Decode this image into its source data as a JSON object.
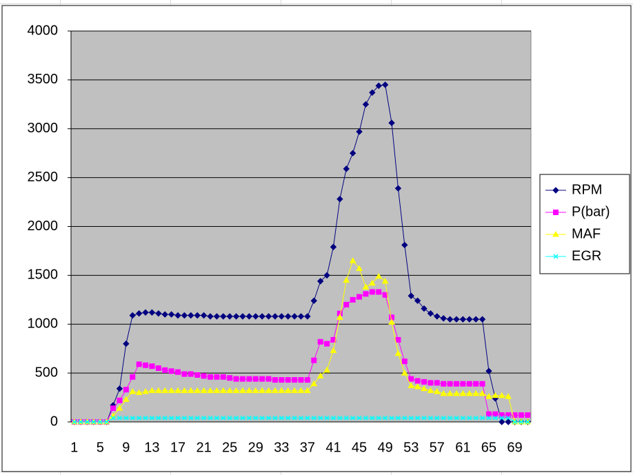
{
  "chart_data": {
    "type": "line",
    "categories": [
      1,
      null,
      null,
      null,
      5,
      null,
      null,
      null,
      9,
      null,
      null,
      null,
      13,
      null,
      null,
      null,
      17,
      null,
      null,
      null,
      21,
      null,
      null,
      null,
      25,
      null,
      null,
      null,
      29,
      null,
      null,
      null,
      33,
      null,
      null,
      null,
      37,
      null,
      null,
      null,
      41,
      null,
      null,
      null,
      45,
      null,
      null,
      null,
      49,
      null,
      null,
      null,
      53,
      null,
      null,
      null,
      57,
      null,
      null,
      null,
      61,
      null,
      null,
      null,
      65,
      null,
      null,
      null,
      69,
      null,
      null
    ],
    "ylim": [
      0,
      4000
    ],
    "yticks": [
      0,
      500,
      1000,
      1500,
      2000,
      2500,
      3000,
      3500,
      4000
    ],
    "grid": true,
    "legend": "right",
    "series": [
      {
        "name": "RPM",
        "color": "#000080",
        "marker": "diamond",
        "values": [
          0,
          0,
          0,
          0,
          0,
          0,
          170,
          340,
          800,
          1090,
          1110,
          1120,
          1120,
          1110,
          1100,
          1100,
          1090,
          1090,
          1090,
          1090,
          1090,
          1080,
          1080,
          1080,
          1080,
          1080,
          1080,
          1080,
          1080,
          1080,
          1080,
          1080,
          1080,
          1080,
          1080,
          1080,
          1080,
          1240,
          1440,
          1500,
          1790,
          2280,
          2590,
          2750,
          2970,
          3250,
          3370,
          3440,
          3450,
          3060,
          2390,
          1810,
          1290,
          1240,
          1160,
          1110,
          1080,
          1060,
          1050,
          1050,
          1050,
          1050,
          1050,
          1050,
          520,
          240,
          0,
          0,
          0,
          0,
          0
        ]
      },
      {
        "name": "P(bar)",
        "color": "#ff00ff",
        "marker": "square",
        "values": [
          0,
          0,
          0,
          0,
          0,
          0,
          140,
          220,
          330,
          460,
          590,
          580,
          570,
          550,
          530,
          520,
          510,
          490,
          490,
          480,
          470,
          460,
          460,
          460,
          450,
          440,
          440,
          440,
          440,
          440,
          440,
          430,
          430,
          430,
          430,
          430,
          430,
          630,
          820,
          800,
          840,
          1110,
          1200,
          1250,
          1280,
          1310,
          1330,
          1330,
          1300,
          1070,
          840,
          620,
          440,
          420,
          410,
          400,
          400,
          390,
          390,
          390,
          390,
          390,
          390,
          390,
          80,
          80,
          70,
          70,
          70,
          70,
          70
        ]
      },
      {
        "name": "MAF",
        "color": "#ffff00",
        "marker": "triangle",
        "values": [
          0,
          0,
          0,
          0,
          0,
          0,
          60,
          140,
          230,
          310,
          300,
          310,
          320,
          320,
          320,
          320,
          320,
          320,
          320,
          320,
          320,
          320,
          320,
          320,
          320,
          320,
          320,
          320,
          320,
          320,
          320,
          320,
          320,
          320,
          320,
          320,
          320,
          390,
          470,
          530,
          730,
          1070,
          1450,
          1650,
          1570,
          1380,
          1420,
          1490,
          1440,
          1020,
          700,
          500,
          370,
          360,
          340,
          320,
          310,
          290,
          290,
          290,
          290,
          290,
          290,
          290,
          260,
          270,
          270,
          260,
          0,
          0,
          0
        ]
      },
      {
        "name": "EGR",
        "color": "#00ffff",
        "marker": "x",
        "values": [
          0,
          0,
          0,
          0,
          0,
          0,
          40,
          40,
          40,
          40,
          40,
          40,
          40,
          40,
          40,
          40,
          40,
          40,
          40,
          40,
          40,
          40,
          40,
          40,
          40,
          40,
          40,
          40,
          40,
          40,
          40,
          40,
          40,
          40,
          40,
          40,
          40,
          40,
          40,
          40,
          40,
          40,
          40,
          40,
          40,
          40,
          40,
          40,
          40,
          40,
          40,
          40,
          40,
          40,
          40,
          40,
          40,
          40,
          40,
          40,
          40,
          40,
          40,
          40,
          40,
          40,
          40,
          40,
          0,
          0,
          0
        ]
      }
    ]
  }
}
